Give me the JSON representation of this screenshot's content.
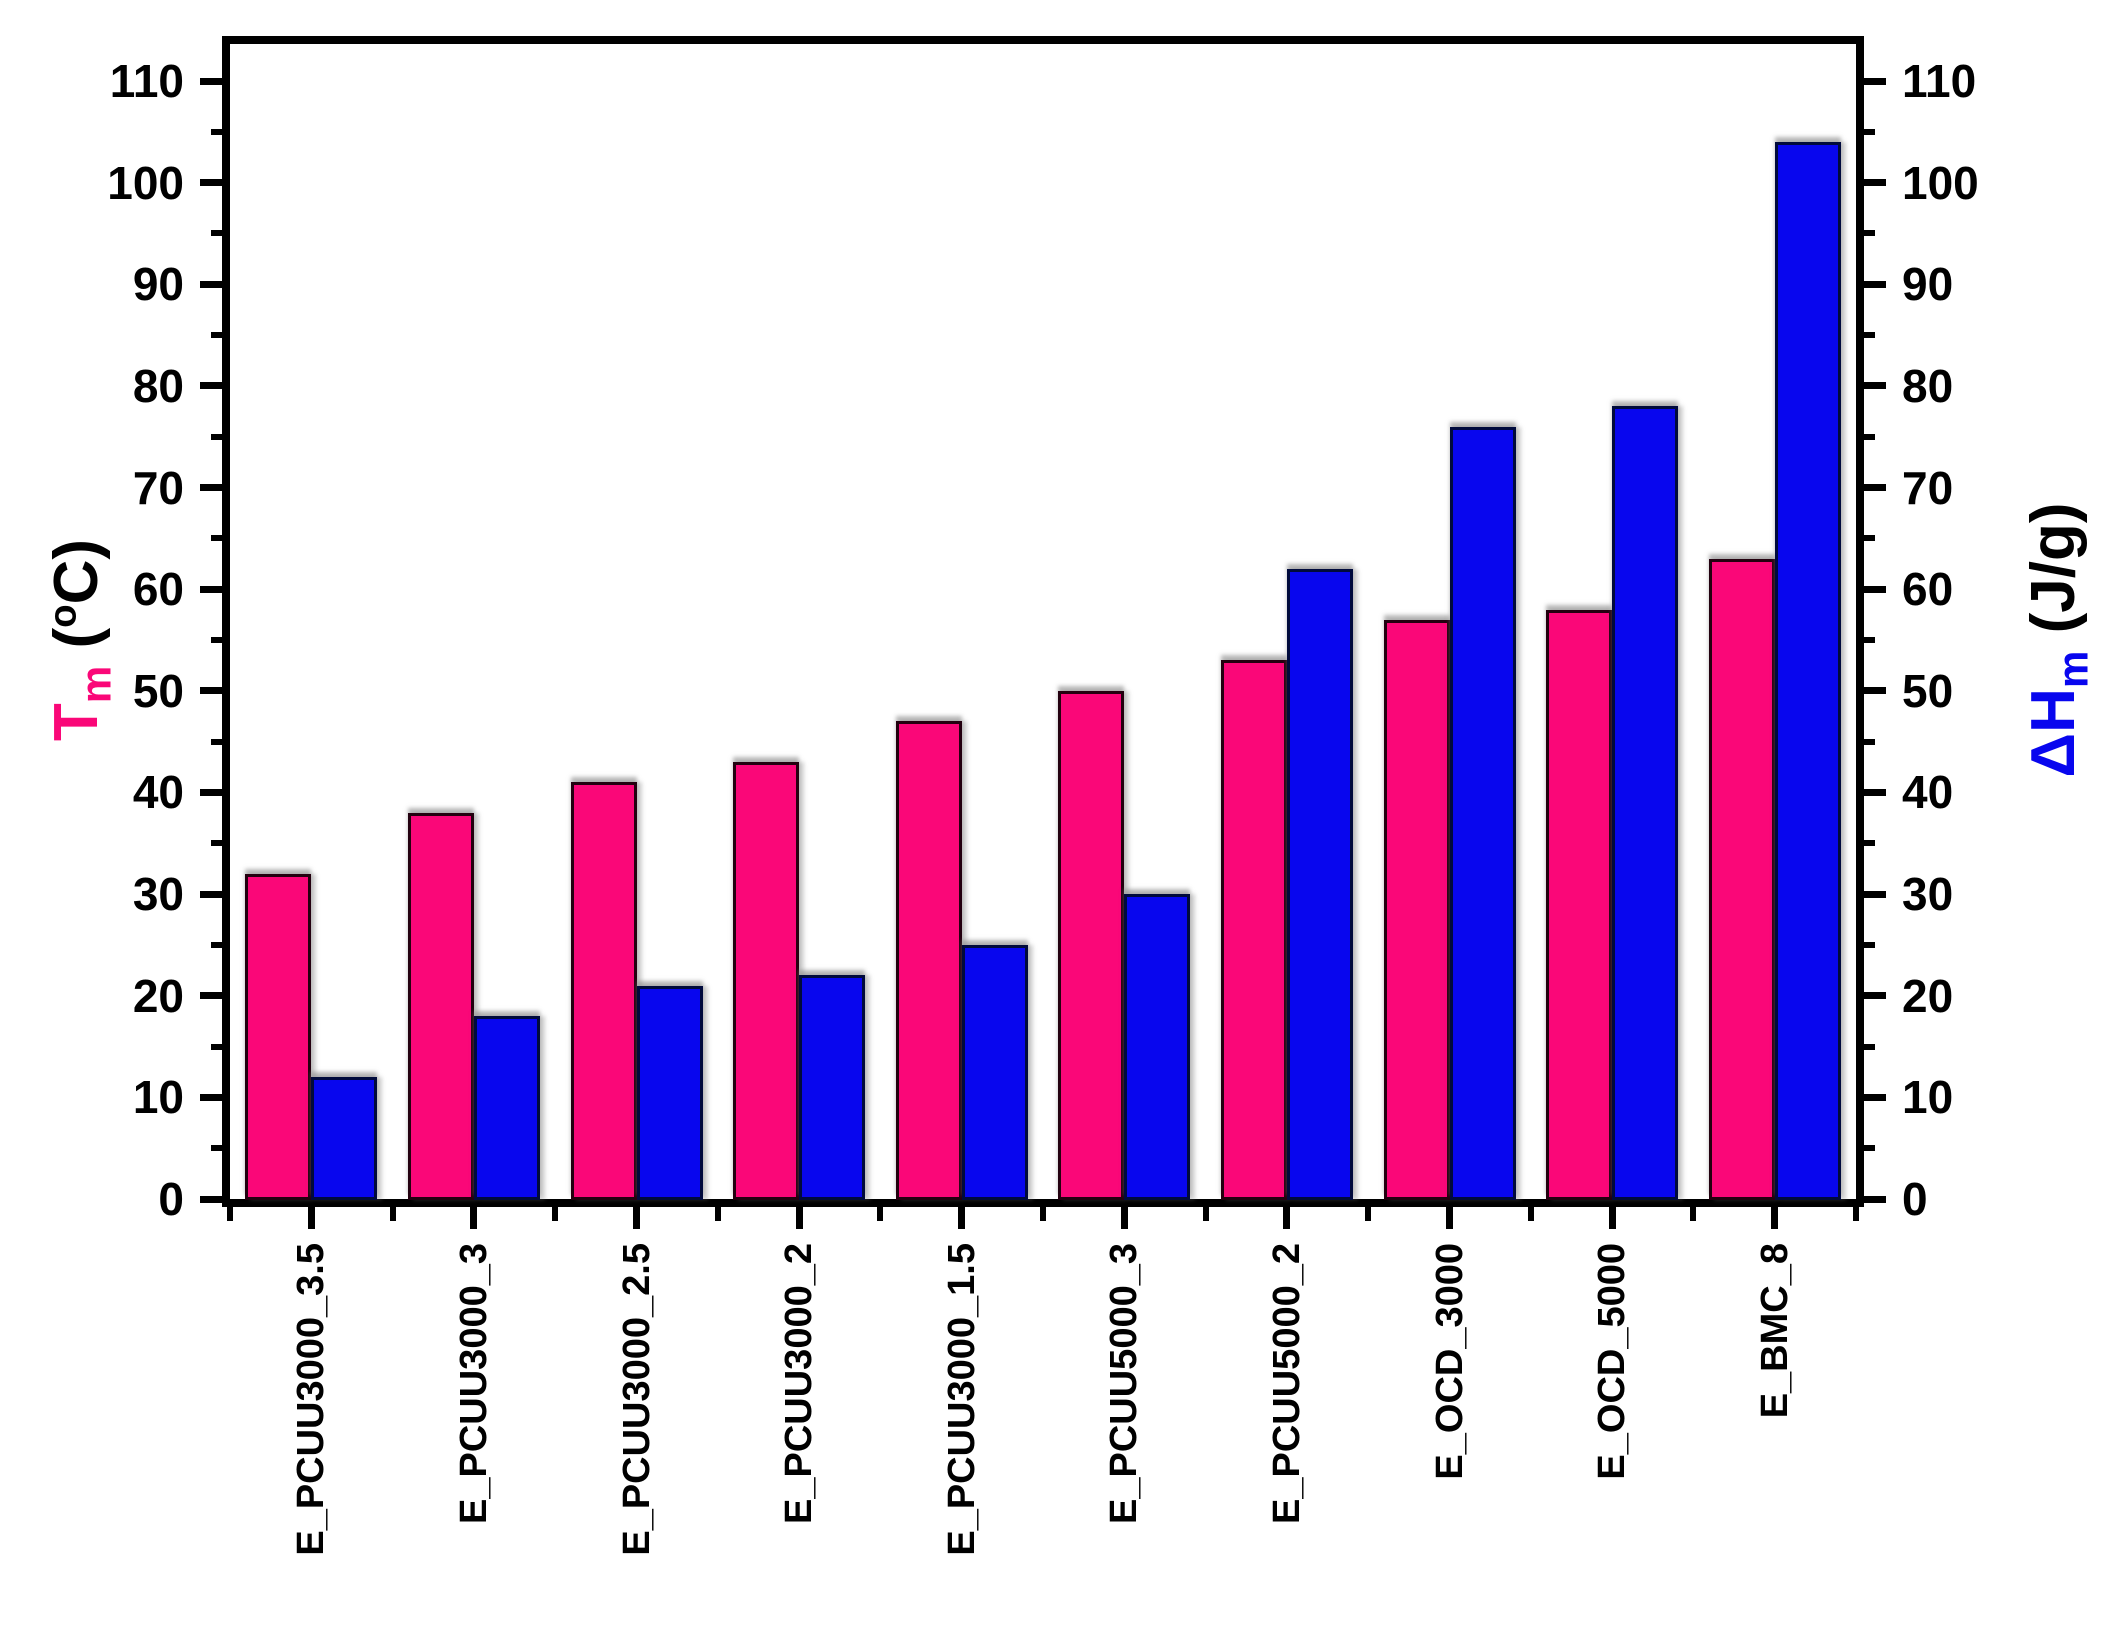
{
  "chart_data": {
    "type": "bar",
    "title": "",
    "categories": [
      "E_PCUU3000_3.5",
      "E_PCUU3000_3",
      "E_PCUU3000_2.5",
      "E_PCUU3000_2",
      "E_PCUU3000_1.5",
      "E_PCUU5000_3",
      "E_PCUU5000_2",
      "E_OCD_3000",
      "E_OCD_5000",
      "E_BMC_8"
    ],
    "series": [
      {
        "name": "Tm",
        "axis": "left",
        "color": "#fa0778",
        "values": [
          32,
          38,
          41,
          43,
          47,
          50,
          53,
          57,
          58,
          63
        ]
      },
      {
        "name": "dHm",
        "axis": "right",
        "color": "#0806ee",
        "values": [
          12,
          18,
          21,
          22,
          25,
          30,
          62,
          76,
          78,
          104
        ]
      }
    ],
    "left_axis": {
      "sym": "T",
      "sym_sub": "m",
      "unit_open": " (",
      "unit_sup": "o",
      "unit_close": "C)",
      "color": "#fa0778",
      "min": 0,
      "max": 110,
      "major_step": 10,
      "minor_step": 5,
      "ticks": [
        0,
        10,
        20,
        30,
        40,
        50,
        60,
        70,
        80,
        90,
        100,
        110
      ]
    },
    "right_axis": {
      "sym": "ΔH",
      "sym_sub": "m",
      "unit_open": " (",
      "unit_sup": "",
      "unit_close": "J/g)",
      "color": "#0806ee",
      "min": 0,
      "max": 110,
      "major_step": 10,
      "minor_step": 5,
      "ticks": [
        0,
        10,
        20,
        30,
        40,
        50,
        60,
        70,
        80,
        90,
        100,
        110
      ]
    },
    "grid": false,
    "legend": "none"
  }
}
